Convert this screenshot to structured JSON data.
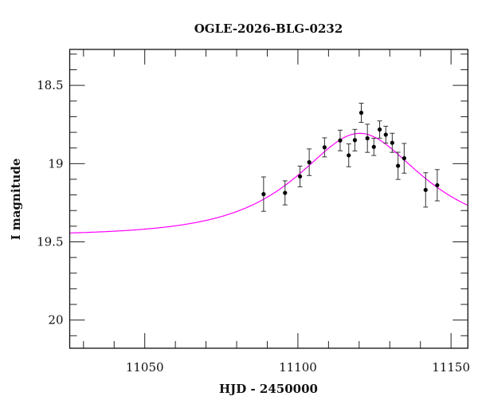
{
  "chart_data": {
    "type": "scatter",
    "title": "OGLE-2026-BLG-0232",
    "xlabel": "HJD - 2450000",
    "ylabel": "I magnitude",
    "xlim": [
      11025.5,
      11155.5
    ],
    "ylim": [
      20.18,
      18.27
    ],
    "y_inverted": true,
    "grid": false,
    "x_ticks": [
      11050,
      11100,
      11150
    ],
    "x_tick_labels": [
      "11050",
      "11100",
      "11150"
    ],
    "x_minor_step": 10,
    "y_ticks": [
      18.5,
      19,
      19.5,
      20
    ],
    "y_tick_labels": [
      "18.5",
      "19",
      "19.5",
      "20"
    ],
    "y_minor_step": 0.1,
    "series": [
      {
        "type": "errorbar",
        "color": "#000000",
        "points": [
          {
            "x": 11088.8,
            "y": 19.195,
            "err": 0.11
          },
          {
            "x": 11095.8,
            "y": 19.187,
            "err": 0.077
          },
          {
            "x": 11100.7,
            "y": 19.082,
            "err": 0.066
          },
          {
            "x": 11103.7,
            "y": 18.991,
            "err": 0.085
          },
          {
            "x": 11108.7,
            "y": 18.896,
            "err": 0.061
          },
          {
            "x": 11113.8,
            "y": 18.852,
            "err": 0.066
          },
          {
            "x": 11116.6,
            "y": 18.947,
            "err": 0.073
          },
          {
            "x": 11118.6,
            "y": 18.85,
            "err": 0.069
          },
          {
            "x": 11120.7,
            "y": 18.675,
            "err": 0.061
          },
          {
            "x": 11122.7,
            "y": 18.838,
            "err": 0.09
          },
          {
            "x": 11124.8,
            "y": 18.893,
            "err": 0.055
          },
          {
            "x": 11126.7,
            "y": 18.782,
            "err": 0.055
          },
          {
            "x": 11128.7,
            "y": 18.815,
            "err": 0.054
          },
          {
            "x": 11130.8,
            "y": 18.867,
            "err": 0.061
          },
          {
            "x": 11132.7,
            "y": 19.014,
            "err": 0.087
          },
          {
            "x": 11134.7,
            "y": 18.966,
            "err": 0.095
          },
          {
            "x": 11141.7,
            "y": 19.168,
            "err": 0.11
          },
          {
            "x": 11145.5,
            "y": 19.138,
            "err": 0.1
          }
        ]
      },
      {
        "type": "line",
        "color": "#ff00ff",
        "model": {
          "kind": "point-lens",
          "t0": 11120.2,
          "u0": 0.625,
          "tE": 31.4,
          "baseline_mag": 19.46
        }
      }
    ]
  }
}
